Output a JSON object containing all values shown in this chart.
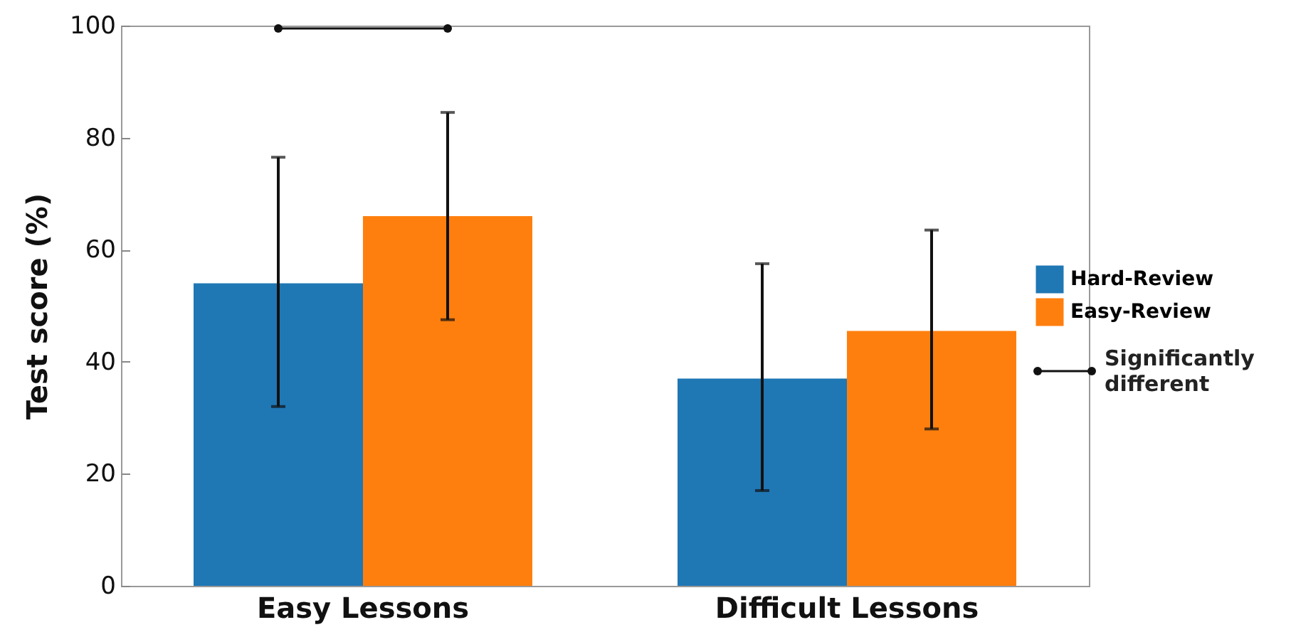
{
  "chart_data": {
    "type": "bar",
    "ylabel": "Test score (%)",
    "categories": [
      "Easy Lessons",
      "Difficult Lessons"
    ],
    "series": [
      {
        "name": "Hard-Review",
        "color": "#1f77b4",
        "values": [
          54,
          37
        ],
        "errors": [
          [
            32,
            76.5
          ],
          [
            17,
            57.5
          ]
        ]
      },
      {
        "name": "Easy-Review",
        "color": "#ff7f0e",
        "values": [
          66,
          45.5
        ],
        "errors": [
          [
            47.5,
            84.5
          ],
          [
            28,
            63.5
          ]
        ]
      }
    ],
    "ylim": [
      0,
      100
    ],
    "yticks": [
      0,
      20,
      40,
      60,
      80,
      100
    ],
    "legend": "right",
    "annotations": [
      "Significantly different"
    ]
  }
}
